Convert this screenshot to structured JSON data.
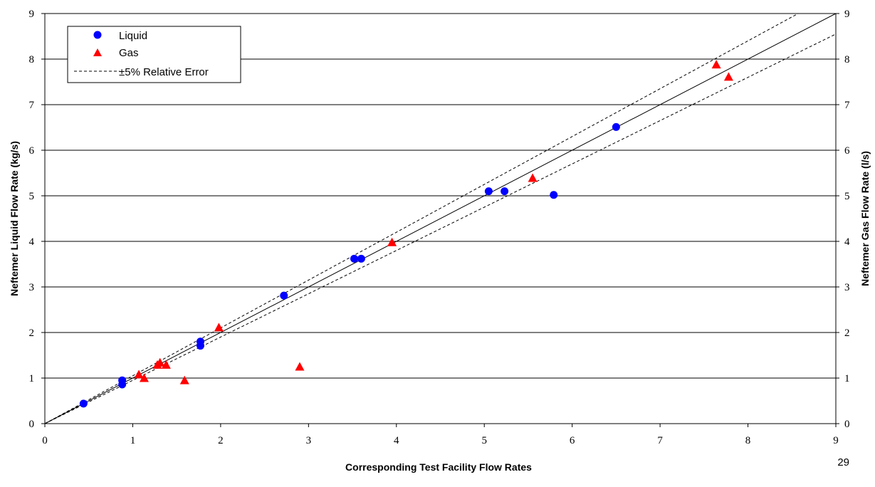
{
  "page_number": "29",
  "chart_data": {
    "type": "scatter",
    "title": "",
    "xlabel": "Corresponding Test Facility Flow Rates",
    "ylabel": "Neftemer Liquid Flow Rate (kg/s)",
    "ylabel_right": "Neftemer Gas Flow Rate (l/s)",
    "xlim": [
      0,
      9
    ],
    "ylim": [
      0,
      9
    ],
    "x_ticks": [
      "0",
      "1",
      "2",
      "3",
      "4",
      "5",
      "6",
      "7",
      "8",
      "9"
    ],
    "y_ticks": [
      "0",
      "1",
      "2",
      "3",
      "4",
      "5",
      "6",
      "7",
      "8",
      "9"
    ],
    "grid": "horizontal",
    "legend_position": "top-left",
    "reference_lines": [
      {
        "name": "identity",
        "slope": 1.0,
        "style": "solid"
      },
      {
        "name": "+5%",
        "slope": 1.05,
        "style": "dashed"
      },
      {
        "name": "-5%",
        "slope": 0.95,
        "style": "dashed"
      }
    ],
    "series": [
      {
        "name": "Liquid",
        "marker": "circle",
        "color": "#0000ff",
        "points": [
          [
            0.44,
            0.44
          ],
          [
            0.88,
            0.86
          ],
          [
            0.88,
            0.95
          ],
          [
            1.77,
            1.71
          ],
          [
            1.77,
            1.8
          ],
          [
            2.72,
            2.81
          ],
          [
            3.52,
            3.62
          ],
          [
            3.6,
            3.62
          ],
          [
            5.05,
            5.1
          ],
          [
            5.23,
            5.1
          ],
          [
            5.79,
            5.02
          ],
          [
            6.5,
            6.51
          ]
        ]
      },
      {
        "name": "Gas",
        "marker": "triangle",
        "color": "#ff0000",
        "points": [
          [
            1.07,
            1.07
          ],
          [
            1.13,
            0.99
          ],
          [
            1.28,
            1.28
          ],
          [
            1.31,
            1.33
          ],
          [
            1.38,
            1.28
          ],
          [
            1.59,
            0.94
          ],
          [
            1.98,
            2.1
          ],
          [
            2.9,
            1.24
          ],
          [
            3.95,
            3.97
          ],
          [
            5.55,
            5.38
          ],
          [
            7.64,
            7.87
          ],
          [
            7.78,
            7.6
          ]
        ]
      }
    ],
    "legend_items": [
      "Liquid",
      "Gas",
      "±5% Relative Error"
    ]
  }
}
